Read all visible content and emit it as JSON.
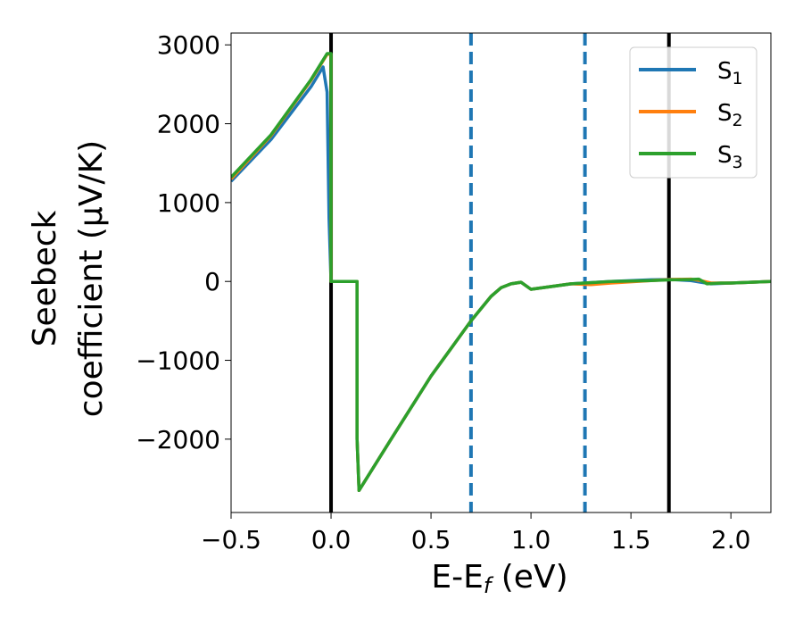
{
  "chart_data": {
    "type": "line",
    "xlabel": "E-E",
    "xlabel_sub": "f",
    "xlabel_unit": " (eV)",
    "ylabel_line1": "Seebeck",
    "ylabel_line2": "coefficient  (μV/K)",
    "xlim": [
      -0.5,
      2.2
    ],
    "ylim": [
      -2930,
      3150
    ],
    "x_ticks": [
      -0.5,
      0.0,
      0.5,
      1.0,
      1.5,
      2.0
    ],
    "x_tick_labels": [
      "−0.5",
      "0.0",
      "0.5",
      "1.0",
      "1.5",
      "2.0"
    ],
    "y_ticks": [
      -2000,
      -1000,
      0,
      1000,
      2000,
      3000
    ],
    "y_tick_labels": [
      "−2000",
      "−1000",
      "0",
      "1000",
      "2000",
      "3000"
    ],
    "grid": false,
    "legend_position": "top-right",
    "vlines": [
      {
        "x": 0.0,
        "style": "solid",
        "color": "#000000"
      },
      {
        "x": 0.7,
        "style": "dashed",
        "color": "#1f77b4"
      },
      {
        "x": 1.27,
        "style": "dashed",
        "color": "#1f77b4"
      },
      {
        "x": 1.69,
        "style": "solid",
        "color": "#000000"
      }
    ],
    "series": [
      {
        "name": "S",
        "sub": "1",
        "color": "#1f77b4",
        "x": [
          -0.5,
          -0.3,
          -0.1,
          -0.04,
          -0.02,
          -0.01,
          0.0,
          0.13,
          0.13,
          0.14,
          0.3,
          0.5,
          0.7,
          0.8,
          0.85,
          0.9,
          0.95,
          1.0,
          1.2,
          1.4,
          1.6,
          1.7,
          1.8,
          1.85,
          1.9,
          2.0,
          2.2
        ],
        "y": [
          1270,
          1800,
          2470,
          2720,
          2400,
          800,
          0,
          0,
          -2000,
          -2650,
          -2000,
          -1200,
          -500,
          -190,
          -80,
          -30,
          -10,
          -100,
          -30,
          0,
          20,
          25,
          10,
          -10,
          -30,
          -20,
          0
        ]
      },
      {
        "name": "S",
        "sub": "2",
        "color": "#ff7f0e",
        "x": [
          -0.5,
          -0.3,
          -0.1,
          -0.02,
          0.0,
          0.0,
          0.13,
          0.13,
          0.14,
          0.3,
          0.5,
          0.7,
          0.8,
          0.85,
          0.9,
          0.95,
          1.0,
          1.2,
          1.3,
          1.4,
          1.6,
          1.7,
          1.8,
          1.85,
          1.9,
          2.0,
          2.2
        ],
        "y": [
          1300,
          1850,
          2550,
          2880,
          2880,
          0,
          0,
          -2000,
          -2650,
          -2000,
          -1200,
          -500,
          -190,
          -80,
          -30,
          -10,
          -100,
          -30,
          -40,
          -20,
          10,
          25,
          30,
          10,
          -20,
          -20,
          0
        ]
      },
      {
        "name": "S",
        "sub": "3",
        "color": "#2ca02c",
        "x": [
          -0.5,
          -0.3,
          -0.1,
          -0.02,
          0.0,
          0.0,
          0.13,
          0.13,
          0.14,
          0.3,
          0.5,
          0.7,
          0.8,
          0.85,
          0.9,
          0.95,
          1.0,
          1.2,
          1.4,
          1.6,
          1.7,
          1.8,
          1.84,
          1.88,
          1.95,
          2.0,
          2.2
        ],
        "y": [
          1320,
          1860,
          2560,
          2890,
          2890,
          0,
          0,
          -2000,
          -2650,
          -2000,
          -1200,
          -500,
          -190,
          -80,
          -30,
          -10,
          -100,
          -30,
          0,
          10,
          20,
          25,
          30,
          -30,
          -20,
          -20,
          0
        ]
      }
    ]
  }
}
